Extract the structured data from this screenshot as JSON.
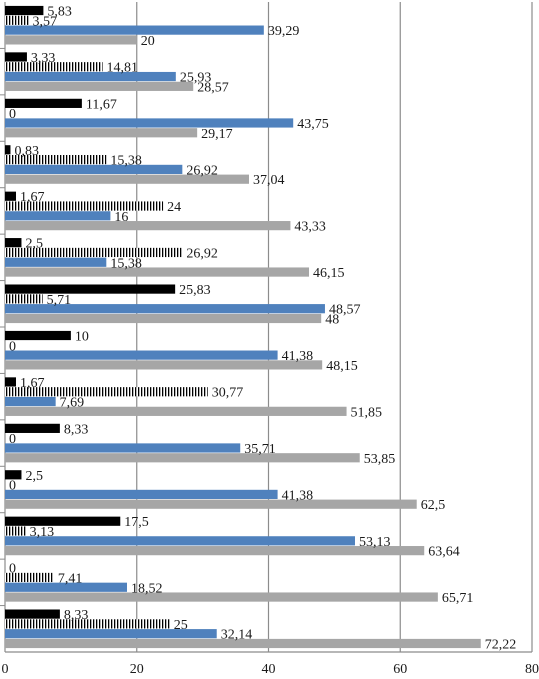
{
  "chart_data": {
    "type": "bar",
    "orientation": "horizontal",
    "xlim": [
      0,
      80
    ],
    "xticks": [
      "0",
      "20",
      "40",
      "60",
      "80"
    ],
    "grid": true,
    "legend": "none",
    "series": [
      {
        "key": "black",
        "color": "#000000",
        "pattern": "solid",
        "values": [
          5.83,
          3.33,
          11.67,
          0.83,
          1.67,
          2.5,
          25.83,
          10,
          1.67,
          8.33,
          2.5,
          17.5,
          0,
          8.33
        ],
        "labels": [
          "5,83",
          "3,33",
          "11,67",
          "0,83",
          "1,67",
          "2,5",
          "25,83",
          "10",
          "1,67",
          "8,33",
          "2,5",
          "17,5",
          "0",
          "8,33"
        ]
      },
      {
        "key": "striped",
        "color": "#000000",
        "pattern": "vertical-stripes",
        "values": [
          3.57,
          14.81,
          0,
          15.38,
          24,
          26.92,
          5.71,
          0,
          30.77,
          0,
          0,
          3.13,
          7.41,
          25
        ],
        "labels": [
          "3,57",
          "14,81",
          "0",
          "15,38",
          "24",
          "26,92",
          "5,71",
          "0",
          "30,77",
          "0",
          "0",
          "3,13",
          "7,41",
          "25"
        ]
      },
      {
        "key": "blue",
        "color": "#4f81bd",
        "pattern": "solid",
        "values": [
          39.29,
          25.93,
          43.75,
          26.92,
          16,
          15.38,
          48.57,
          41.38,
          7.69,
          35.71,
          41.38,
          53.13,
          18.52,
          32.14
        ],
        "labels": [
          "39,29",
          "25,93",
          "43,75",
          "26,92",
          "16",
          "15,38",
          "48,57",
          "41,38",
          "7,69",
          "35,71",
          "41,38",
          "53,13",
          "18,52",
          "32,14"
        ]
      },
      {
        "key": "gray",
        "color": "#a6a6a6",
        "pattern": "solid",
        "values": [
          20,
          28.57,
          29.17,
          37.04,
          43.33,
          46.15,
          48,
          48.15,
          51.85,
          53.85,
          62.5,
          63.64,
          65.71,
          72.22
        ],
        "labels": [
          "20",
          "28,57",
          "29,17",
          "37,04",
          "43,33",
          "46,15",
          "48",
          "48,15",
          "51,85",
          "53,85",
          "62,5",
          "63,64",
          "65,71",
          "72,22"
        ]
      }
    ]
  }
}
